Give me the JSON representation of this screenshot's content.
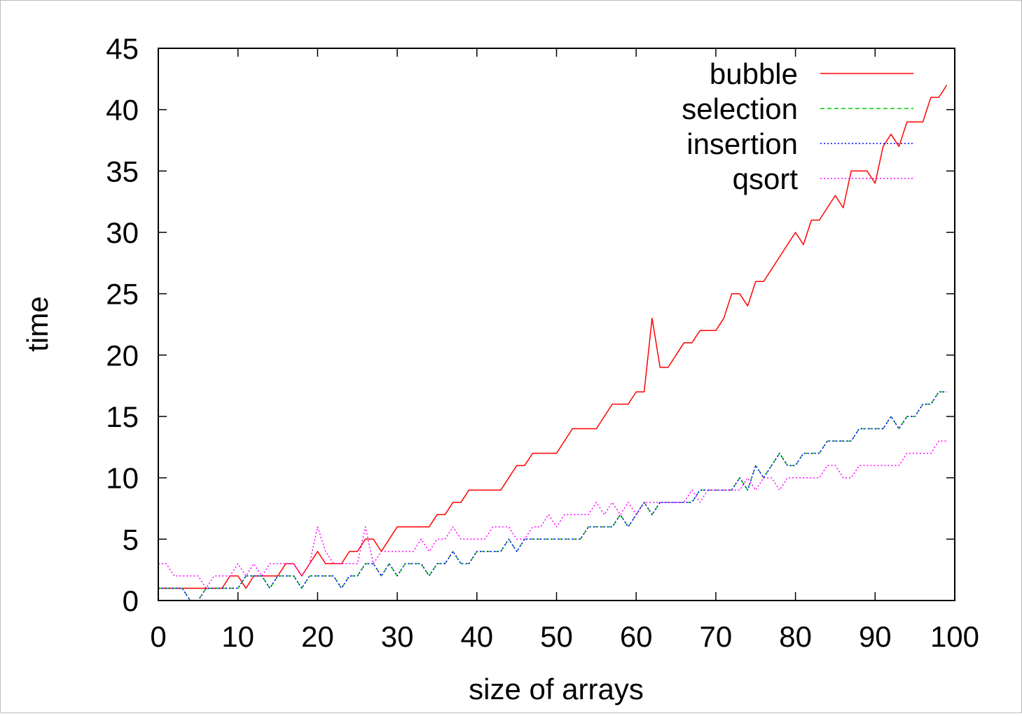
{
  "chart_data": {
    "type": "line",
    "title": "",
    "xlabel": "size of arrays",
    "ylabel": "time",
    "xlim": [
      0,
      100
    ],
    "ylim": [
      0,
      45
    ],
    "xticks": [
      "0",
      "10",
      "20",
      "30",
      "40",
      "50",
      "60",
      "70",
      "80",
      "90",
      "100"
    ],
    "yticks": [
      "0",
      "5",
      "10",
      "15",
      "20",
      "25",
      "30",
      "35",
      "40",
      "45"
    ],
    "legend_position": "top-right",
    "grid": false,
    "x": [
      0,
      1,
      2,
      3,
      4,
      5,
      6,
      7,
      8,
      9,
      10,
      11,
      12,
      13,
      14,
      15,
      16,
      17,
      18,
      19,
      20,
      21,
      22,
      23,
      24,
      25,
      26,
      27,
      28,
      29,
      30,
      31,
      32,
      33,
      34,
      35,
      36,
      37,
      38,
      39,
      40,
      41,
      42,
      43,
      44,
      45,
      46,
      47,
      48,
      49,
      50,
      51,
      52,
      53,
      54,
      55,
      56,
      57,
      58,
      59,
      60,
      61,
      62,
      63,
      64,
      65,
      66,
      67,
      68,
      69,
      70,
      71,
      72,
      73,
      74,
      75,
      76,
      77,
      78,
      79,
      80,
      81,
      82,
      83,
      84,
      85,
      86,
      87,
      88,
      89,
      90,
      91,
      92,
      93,
      94,
      95,
      96,
      97,
      98,
      99
    ],
    "series": [
      {
        "name": "bubble",
        "color": "#ff0000",
        "dash": "solid",
        "values": [
          1,
          1,
          1,
          1,
          1,
          1,
          1,
          1,
          1,
          2,
          2,
          1,
          2,
          2,
          2,
          2,
          3,
          3,
          2,
          3,
          4,
          3,
          3,
          3,
          4,
          4,
          5,
          5,
          4,
          5,
          6,
          6,
          6,
          6,
          6,
          7,
          7,
          8,
          8,
          9,
          9,
          9,
          9,
          9,
          10,
          11,
          11,
          12,
          12,
          12,
          12,
          13,
          14,
          14,
          14,
          14,
          15,
          16,
          16,
          16,
          17,
          17,
          23,
          19,
          19,
          20,
          21,
          21,
          22,
          22,
          22,
          23,
          25,
          25,
          24,
          26,
          26,
          27,
          28,
          29,
          30,
          29,
          31,
          31,
          32,
          33,
          32,
          35,
          35,
          35,
          34,
          37,
          38,
          37,
          39,
          39,
          39,
          41,
          41,
          42
        ]
      },
      {
        "name": "selection",
        "color": "#00cc00",
        "dash": "dashed",
        "values": [
          1,
          1,
          1,
          1,
          0,
          0,
          1,
          1,
          1,
          1,
          1,
          2,
          2,
          2,
          1,
          2,
          2,
          2,
          1,
          2,
          2,
          2,
          2,
          1,
          2,
          2,
          3,
          3,
          2,
          3,
          2,
          3,
          3,
          3,
          2,
          3,
          3,
          4,
          3,
          3,
          4,
          4,
          4,
          4,
          5,
          4,
          5,
          5,
          5,
          5,
          5,
          5,
          5,
          5,
          6,
          6,
          6,
          6,
          7,
          6,
          7,
          8,
          7,
          8,
          8,
          8,
          8,
          8,
          9,
          9,
          9,
          9,
          9,
          10,
          9,
          11,
          10,
          11,
          12,
          11,
          11,
          12,
          12,
          12,
          13,
          13,
          13,
          13,
          14,
          14,
          14,
          14,
          15,
          14,
          15,
          15,
          16,
          16,
          17,
          17
        ]
      },
      {
        "name": "insertion",
        "color": "#0000ff",
        "dash": "dotted",
        "values": [
          1,
          1,
          1,
          1,
          0,
          0,
          1,
          1,
          1,
          1,
          1,
          2,
          2,
          2,
          1,
          2,
          2,
          2,
          1,
          2,
          2,
          2,
          2,
          1,
          2,
          2,
          3,
          3,
          2,
          3,
          2,
          3,
          3,
          3,
          2,
          3,
          3,
          4,
          3,
          3,
          4,
          4,
          4,
          4,
          5,
          4,
          5,
          5,
          5,
          5,
          5,
          5,
          5,
          5,
          6,
          6,
          6,
          6,
          7,
          6,
          7,
          8,
          7,
          8,
          8,
          8,
          8,
          8,
          9,
          9,
          9,
          9,
          9,
          10,
          9,
          11,
          10,
          11,
          12,
          11,
          11,
          12,
          12,
          12,
          13,
          13,
          13,
          13,
          14,
          14,
          14,
          14,
          15,
          14,
          15,
          15,
          16,
          16,
          17,
          17
        ]
      },
      {
        "name": "qsort",
        "color": "#ff00ff",
        "dash": "dotted",
        "values": [
          3,
          3,
          2,
          2,
          2,
          2,
          1,
          2,
          2,
          2,
          3,
          2,
          3,
          2,
          3,
          3,
          3,
          3,
          2,
          3,
          6,
          4,
          3,
          3,
          3,
          3,
          6,
          3,
          4,
          4,
          4,
          4,
          4,
          5,
          4,
          5,
          5,
          6,
          5,
          5,
          5,
          5,
          6,
          6,
          6,
          5,
          5,
          6,
          6,
          7,
          6,
          7,
          7,
          7,
          7,
          8,
          7,
          8,
          7,
          8,
          7,
          8,
          8,
          8,
          8,
          8,
          8,
          9,
          8,
          9,
          9,
          9,
          9,
          9,
          10,
          9,
          10,
          10,
          9,
          10,
          10,
          10,
          10,
          10,
          11,
          11,
          10,
          10,
          11,
          11,
          11,
          11,
          11,
          11,
          12,
          12,
          12,
          12,
          13,
          13
        ]
      }
    ]
  }
}
